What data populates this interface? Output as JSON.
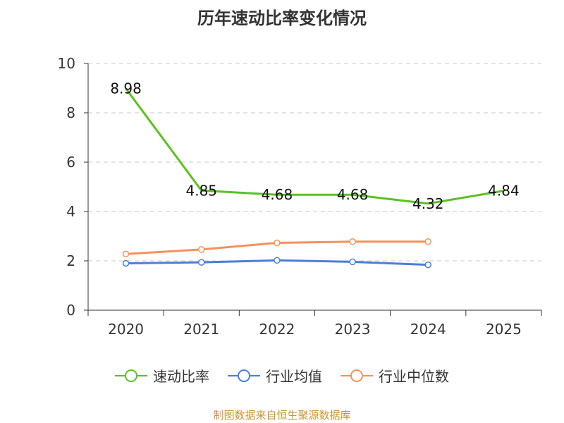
{
  "title": "历年速动比率变化情况",
  "source": "制图数据来自恒生聚源数据库",
  "chart_data": {
    "type": "line",
    "title": "历年速动比率变化情况",
    "categories": [
      "2020",
      "2021",
      "2022",
      "2023",
      "2024",
      "2025"
    ],
    "ylim": [
      0,
      10
    ],
    "yticks": [
      0,
      2,
      4,
      6,
      8,
      10
    ],
    "grid": true,
    "legend_position": "bottom",
    "series": [
      {
        "name": "速动比率",
        "color": "#5cc022",
        "values": [
          8.98,
          4.85,
          4.68,
          4.68,
          4.32,
          4.84
        ],
        "labels": [
          "8.98",
          "4.85",
          "4.68",
          "4.68",
          "4.32",
          "4.84"
        ],
        "markers": false
      },
      {
        "name": "行业均值",
        "color": "#4a7fd8",
        "values": [
          1.9,
          1.94,
          2.02,
          1.96,
          1.84,
          null
        ],
        "markers": true
      },
      {
        "name": "行业中位数",
        "color": "#f4925c",
        "values": [
          2.28,
          2.46,
          2.73,
          2.78,
          2.78,
          null
        ],
        "markers": true
      }
    ]
  }
}
